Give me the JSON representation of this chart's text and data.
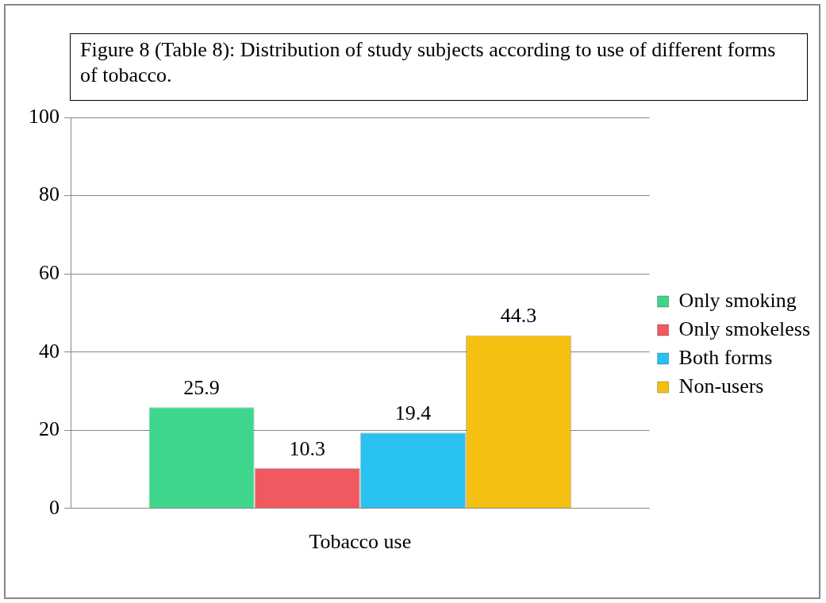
{
  "chart_data": {
    "type": "bar",
    "title": "Figure 8 (Table 8): Distribution of study subjects according to use of different forms of tobacco.",
    "categories": [
      "Tobacco use"
    ],
    "series": [
      {
        "name": "Only smoking",
        "color": "#3dd68c",
        "values": [
          25.9
        ]
      },
      {
        "name": "Only smokeless",
        "color": "#f0595f",
        "values": [
          10.3
        ]
      },
      {
        "name": "Both forms",
        "color": "#29c2f0",
        "values": [
          19.4
        ]
      },
      {
        "name": "Non-users",
        "color": "#f5c011",
        "values": [
          44.3
        ]
      }
    ],
    "ylim": [
      0,
      100
    ],
    "yticks": [
      0,
      20,
      40,
      60,
      80,
      100
    ],
    "grid": "y",
    "legend": "right",
    "data_labels": true
  }
}
